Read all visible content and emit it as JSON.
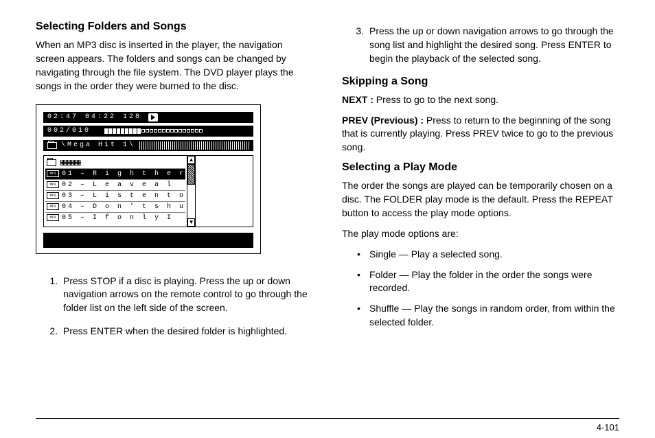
{
  "left": {
    "h1": "Selecting Folders and Songs",
    "intro": "When an MP3 disc is inserted in the player, the navigation screen appears. The folders and songs can be changed by navigating through the file system. The DVD player plays the songs in the order they were burned to the disc.",
    "screenshot": {
      "time_elapsed": "02:47",
      "time_total": "04:22",
      "bitrate": "128",
      "track": "002/010",
      "folder_path": "\\Mega Hit 1\\",
      "songs": [
        {
          "num": "01",
          "title": "R i g h t h e r",
          "selected": true
        },
        {
          "num": "02",
          "title": "L e a v e a l",
          "selected": false
        },
        {
          "num": "03",
          "title": "L i s t e n  t o",
          "selected": false
        },
        {
          "num": "04",
          "title": "D o n ' t s h u",
          "selected": false
        },
        {
          "num": "05",
          "title": "I f  o n l y  I",
          "selected": false
        }
      ]
    },
    "steps": [
      "Press STOP if a disc is playing. Press the up or down navigation arrows on the remote control to go through the folder list on the left side of the screen.",
      "Press ENTER when the desired folder is highlighted."
    ]
  },
  "right": {
    "step3": "Press the up or down navigation arrows to go through the song list and highlight the desired song. Press ENTER to begin the playback of the selected song.",
    "h2": "Skipping a Song",
    "next_label": "NEXT :",
    "next_text": " Press to go to the next song.",
    "prev_label": "PREV (Previous) :",
    "prev_text": " Press to return to the beginning of the song that is currently playing. Press PREV twice to go to the previous song.",
    "h3": "Selecting a Play Mode",
    "pm_intro": "The order the songs are played can be temporarily chosen on a disc. The FOLDER play mode is the default. Press the REPEAT button to access the play mode options.",
    "pm_lead": "The play mode options are:",
    "modes": [
      "Single — Play a selected song.",
      "Folder — Play the folder in the order the songs were recorded.",
      "Shuffle — Play the songs in random order, from within the selected folder."
    ]
  },
  "page_number": "4-101"
}
